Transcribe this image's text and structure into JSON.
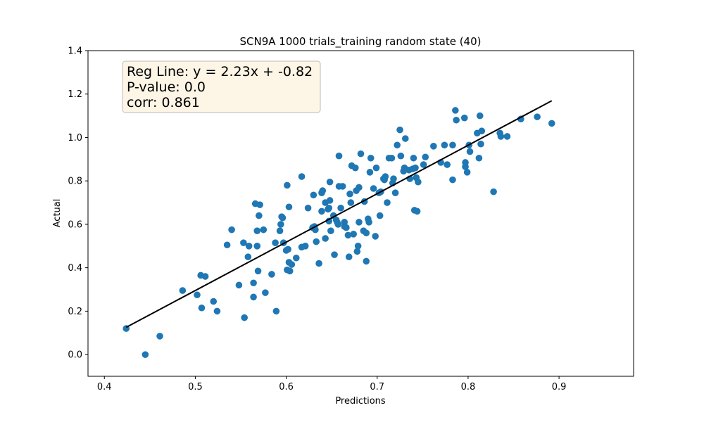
{
  "chart_data": {
    "type": "scatter",
    "title": "SCN9A 1000 trials_training random state (40)",
    "xlabel": "Predictions",
    "ylabel": "Actual",
    "xlim": [
      0.382,
      0.982
    ],
    "ylim": [
      -0.1,
      1.4
    ],
    "xticks": [
      0.4,
      0.5,
      0.6,
      0.7,
      0.8,
      0.9
    ],
    "xtick_labels": [
      "0.4",
      "0.5",
      "0.6",
      "0.7",
      "0.8",
      "0.9"
    ],
    "yticks": [
      0.0,
      0.2,
      0.4,
      0.6,
      0.8,
      1.0,
      1.2,
      1.4
    ],
    "ytick_labels": [
      "0.0",
      "0.2",
      "0.4",
      "0.6",
      "0.8",
      "1.0",
      "1.2",
      "1.4"
    ],
    "grid": false,
    "colors": {
      "points": "#1f77b4",
      "regression_line": "#000000",
      "stats_box_fill": "#fdf5e6",
      "stats_box_edge": "#bbbbbb"
    },
    "annotation": {
      "location": "top-left",
      "lines": [
        "Reg Line: y = 2.23x + -0.82",
        "P-value: 0.0",
        "corr: 0.861"
      ]
    },
    "regression_line": {
      "slope": 2.23,
      "intercept": -0.82,
      "x_range": [
        0.424,
        0.892
      ]
    },
    "points": [
      [
        0.424,
        0.12
      ],
      [
        0.445,
        0.0
      ],
      [
        0.461,
        0.085
      ],
      [
        0.486,
        0.295
      ],
      [
        0.502,
        0.275
      ],
      [
        0.506,
        0.365
      ],
      [
        0.507,
        0.215
      ],
      [
        0.511,
        0.36
      ],
      [
        0.52,
        0.245
      ],
      [
        0.524,
        0.2
      ],
      [
        0.535,
        0.505
      ],
      [
        0.54,
        0.575
      ],
      [
        0.548,
        0.32
      ],
      [
        0.553,
        0.515
      ],
      [
        0.554,
        0.17
      ],
      [
        0.558,
        0.45
      ],
      [
        0.559,
        0.5
      ],
      [
        0.564,
        0.33
      ],
      [
        0.564,
        0.265
      ],
      [
        0.566,
        0.695
      ],
      [
        0.568,
        0.57
      ],
      [
        0.568,
        0.5
      ],
      [
        0.569,
        0.385
      ],
      [
        0.57,
        0.64
      ],
      [
        0.571,
        0.69
      ],
      [
        0.575,
        0.575
      ],
      [
        0.577,
        0.285
      ],
      [
        0.584,
        0.37
      ],
      [
        0.588,
        0.515
      ],
      [
        0.589,
        0.2
      ],
      [
        0.593,
        0.57
      ],
      [
        0.594,
        0.6
      ],
      [
        0.595,
        0.635
      ],
      [
        0.596,
        0.63
      ],
      [
        0.597,
        0.515
      ],
      [
        0.6,
        0.48
      ],
      [
        0.601,
        0.78
      ],
      [
        0.601,
        0.39
      ],
      [
        0.602,
        0.485
      ],
      [
        0.603,
        0.68
      ],
      [
        0.603,
        0.425
      ],
      [
        0.604,
        0.385
      ],
      [
        0.606,
        0.415
      ],
      [
        0.611,
        0.445
      ],
      [
        0.617,
        0.82
      ],
      [
        0.617,
        0.495
      ],
      [
        0.621,
        0.5
      ],
      [
        0.624,
        0.675
      ],
      [
        0.629,
        0.585
      ],
      [
        0.63,
        0.735
      ],
      [
        0.631,
        0.59
      ],
      [
        0.632,
        0.575
      ],
      [
        0.633,
        0.52
      ],
      [
        0.636,
        0.42
      ],
      [
        0.639,
        0.66
      ],
      [
        0.639,
        0.745
      ],
      [
        0.64,
        0.755
      ],
      [
        0.643,
        0.535
      ],
      [
        0.643,
        0.7
      ],
      [
        0.646,
        0.67
      ],
      [
        0.647,
        0.615
      ],
      [
        0.647,
        0.675
      ],
      [
        0.648,
        0.71
      ],
      [
        0.648,
        0.795
      ],
      [
        0.649,
        0.57
      ],
      [
        0.652,
        0.64
      ],
      [
        0.653,
        0.46
      ],
      [
        0.655,
        0.62
      ],
      [
        0.656,
        0.61
      ],
      [
        0.657,
        0.6
      ],
      [
        0.658,
        0.915
      ],
      [
        0.658,
        0.775
      ],
      [
        0.66,
        0.675
      ],
      [
        0.662,
        0.775
      ],
      [
        0.664,
        0.59
      ],
      [
        0.664,
        0.61
      ],
      [
        0.666,
        0.585
      ],
      [
        0.668,
        0.55
      ],
      [
        0.669,
        0.45
      ],
      [
        0.67,
        0.74
      ],
      [
        0.671,
        0.7
      ],
      [
        0.672,
        0.87
      ],
      [
        0.674,
        0.555
      ],
      [
        0.676,
        0.86
      ],
      [
        0.677,
        0.755
      ],
      [
        0.678,
        0.475
      ],
      [
        0.679,
        0.5
      ],
      [
        0.68,
        0.77
      ],
      [
        0.68,
        0.61
      ],
      [
        0.682,
        0.925
      ],
      [
        0.685,
        0.57
      ],
      [
        0.686,
        0.705
      ],
      [
        0.688,
        0.56
      ],
      [
        0.688,
        0.43
      ],
      [
        0.69,
        0.625
      ],
      [
        0.691,
        0.61
      ],
      [
        0.692,
        0.84
      ],
      [
        0.693,
        0.905
      ],
      [
        0.696,
        0.765
      ],
      [
        0.698,
        0.545
      ],
      [
        0.699,
        0.86
      ],
      [
        0.702,
        0.745
      ],
      [
        0.703,
        0.64
      ],
      [
        0.704,
        0.75
      ],
      [
        0.707,
        0.81
      ],
      [
        0.708,
        0.805
      ],
      [
        0.709,
        0.82
      ],
      [
        0.711,
        0.7
      ],
      [
        0.713,
        0.905
      ],
      [
        0.716,
        0.905
      ],
      [
        0.717,
        0.79
      ],
      [
        0.718,
        0.81
      ],
      [
        0.72,
        0.745
      ],
      [
        0.722,
        0.965
      ],
      [
        0.725,
        1.035
      ],
      [
        0.726,
        0.915
      ],
      [
        0.729,
        0.845
      ],
      [
        0.73,
        0.86
      ],
      [
        0.731,
        0.995
      ],
      [
        0.735,
        0.85
      ],
      [
        0.736,
        0.81
      ],
      [
        0.739,
        0.855
      ],
      [
        0.74,
        0.905
      ],
      [
        0.741,
        0.665
      ],
      [
        0.742,
        0.86
      ],
      [
        0.743,
        0.815
      ],
      [
        0.744,
        0.66
      ],
      [
        0.745,
        0.795
      ],
      [
        0.751,
        0.875
      ],
      [
        0.753,
        0.91
      ],
      [
        0.762,
        0.96
      ],
      [
        0.77,
        0.885
      ],
      [
        0.774,
        0.965
      ],
      [
        0.777,
        0.875
      ],
      [
        0.783,
        0.965
      ],
      [
        0.783,
        0.805
      ],
      [
        0.786,
        1.125
      ],
      [
        0.787,
        1.08
      ],
      [
        0.796,
        1.09
      ],
      [
        0.797,
        0.885
      ],
      [
        0.797,
        0.865
      ],
      [
        0.799,
        0.84
      ],
      [
        0.801,
        0.965
      ],
      [
        0.802,
        0.935
      ],
      [
        0.81,
        1.02
      ],
      [
        0.812,
        0.905
      ],
      [
        0.813,
        1.1
      ],
      [
        0.814,
        0.97
      ],
      [
        0.815,
        1.03
      ],
      [
        0.828,
        0.75
      ],
      [
        0.835,
        1.02
      ],
      [
        0.836,
        1.005
      ],
      [
        0.843,
        1.005
      ],
      [
        0.858,
        1.085
      ],
      [
        0.876,
        1.095
      ],
      [
        0.892,
        1.065
      ]
    ]
  }
}
